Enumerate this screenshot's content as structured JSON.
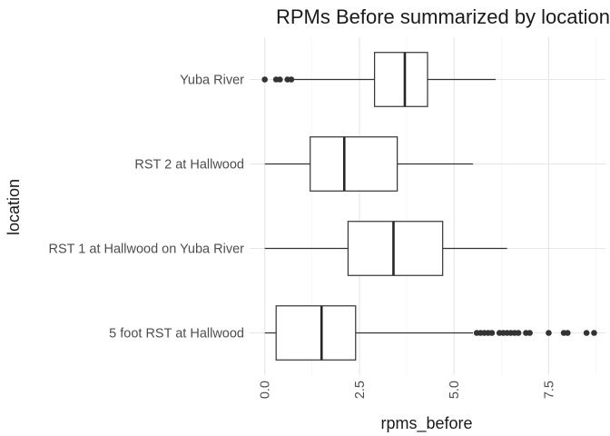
{
  "chart_data": {
    "type": "boxplot",
    "title": "RPMs Before summarized by location",
    "xlabel": "rpms_before",
    "ylabel": "location",
    "xlim": [
      -0.4,
      9.0
    ],
    "x_ticks": [
      0.0,
      2.5,
      5.0,
      7.5
    ],
    "x_tick_labels": [
      "0.0",
      "2.5",
      "5.0",
      "7.5"
    ],
    "grid": true,
    "legend": "none",
    "categories": [
      "Yuba River",
      "RST 2 at Hallwood",
      "RST 1 at Hallwood on Yuba River",
      "5 foot RST at Hallwood"
    ],
    "boxes": [
      {
        "category": "Yuba River",
        "min": 0.7,
        "q1": 2.9,
        "median": 3.7,
        "q3": 4.3,
        "max": 6.1,
        "outliers": [
          0.0,
          0.3,
          0.4,
          0.6,
          0.7
        ]
      },
      {
        "category": "RST 2 at Hallwood",
        "min": 0.0,
        "q1": 1.2,
        "median": 2.1,
        "q3": 3.5,
        "max": 5.5,
        "outliers": []
      },
      {
        "category": "RST 1 at Hallwood on Yuba River",
        "min": 0.0,
        "q1": 2.2,
        "median": 3.4,
        "q3": 4.7,
        "max": 6.4,
        "outliers": []
      },
      {
        "category": "5 foot RST at Hallwood",
        "min": 0.0,
        "q1": 0.3,
        "median": 1.5,
        "q3": 2.4,
        "max": 5.5,
        "outliers": [
          5.6,
          5.7,
          5.8,
          5.9,
          6.0,
          6.2,
          6.3,
          6.4,
          6.5,
          6.6,
          6.7,
          6.9,
          7.0,
          7.5,
          7.9,
          8.0,
          8.5,
          8.7
        ]
      }
    ],
    "colors": {
      "box_fill": "#ffffff",
      "box_stroke": "#333333",
      "grid": "#ebebeb",
      "outlier": "#333333"
    }
  }
}
